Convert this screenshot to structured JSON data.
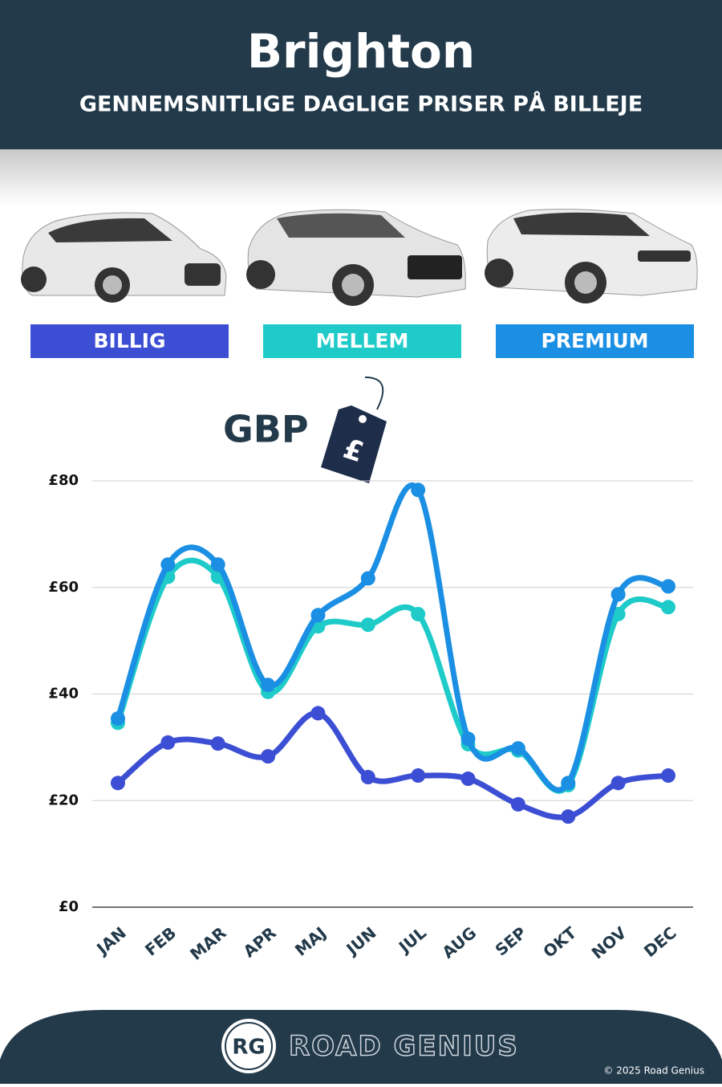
{
  "chart_data": {
    "type": "line",
    "title": "Brighton",
    "subtitle": "GENNEMSNITLIGE DAGLIGE PRISER PÅ BILLEJE",
    "currency_label": "GBP",
    "categories": [
      "JAN",
      "FEB",
      "MAR",
      "APR",
      "MAJ",
      "JUN",
      "JUL",
      "AUG",
      "SEP",
      "OKT",
      "NOV",
      "DEC"
    ],
    "series": [
      {
        "name": "BILLIG",
        "color": "#3c4fd4",
        "values": [
          23.3,
          30.9,
          30.7,
          28.3,
          36.4,
          24.4,
          24.7,
          24.1,
          19.3,
          17.0,
          23.3,
          24.7
        ]
      },
      {
        "name": "MELLEM",
        "color": "#1ecbc9",
        "values": [
          34.6,
          62.0,
          62.0,
          40.4,
          52.7,
          53.0,
          55.0,
          30.6,
          29.4,
          22.9,
          55.0,
          56.3
        ]
      },
      {
        "name": "PREMIUM",
        "color": "#1b8fe3",
        "values": [
          35.4,
          64.3,
          64.3,
          41.7,
          54.8,
          61.7,
          78.3,
          31.6,
          29.8,
          23.3,
          58.7,
          60.2
        ]
      }
    ],
    "ylim": [
      0,
      80
    ],
    "yticks": [
      {
        "value": 0,
        "label": "£0"
      },
      {
        "value": 20,
        "label": "£20"
      },
      {
        "value": 40,
        "label": "£40"
      },
      {
        "value": 60,
        "label": "£60"
      },
      {
        "value": 80,
        "label": "£80"
      }
    ],
    "grid": true
  },
  "footer": {
    "logo": "RG",
    "brand": "ROAD GENIUS",
    "copyright": "© 2025 Road Genius"
  }
}
